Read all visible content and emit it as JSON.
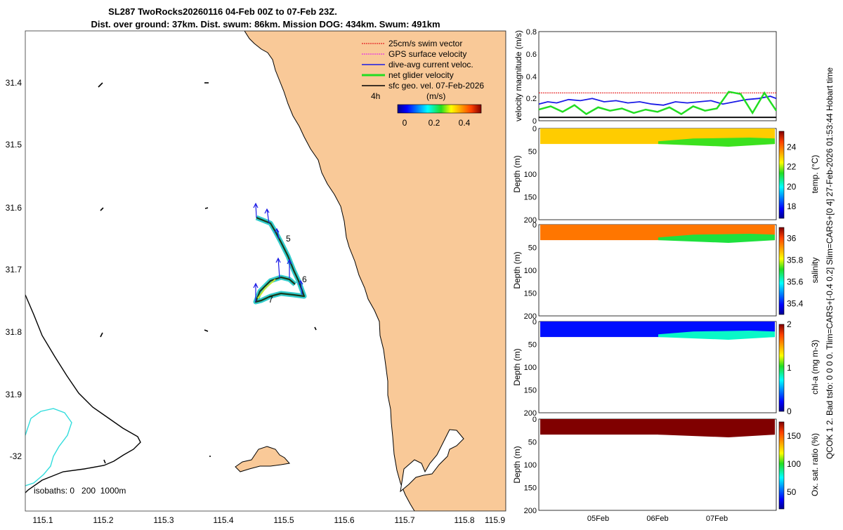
{
  "title": {
    "line1": "SL287 TwoRocks20260116 04-Feb 00Z to 07-Feb 23Z.",
    "line2": "Dist. over ground: 37km. Dist. swum: 86km. Mission DOG: 434km. Swum: 491km"
  },
  "side_note": "QCOK 1  2. Bad tsfo: 0  0  0  0. Tlim=CARS+[-0.4 0.2] Slim=CARS+[0 4] 27-Feb-2026 01:53:44 Hobart time",
  "map": {
    "x_ticks": [
      "115.1",
      "115.2",
      "115.3",
      "115.4",
      "115.5",
      "115.6",
      "115.7",
      "115.8",
      "115.9"
    ],
    "y_ticks": [
      "31.4",
      "31.5",
      "31.6",
      "31.7",
      "31.8",
      "31.9",
      "-32"
    ],
    "legend": [
      {
        "label": "25cm/s swim vector",
        "color": "#e52020"
      },
      {
        "label": "GPS surface velocity",
        "color": "#e533e5"
      },
      {
        "label": "dive-avg current veloc.",
        "color": "#1a1ae6"
      },
      {
        "label": "net glider velocity",
        "color": "#22dd22"
      },
      {
        "label": "sfc geo. vel. 07-Feb-2026",
        "color": "#000000"
      }
    ],
    "time_step": "4h",
    "colorbar_unit": "(m/s)",
    "colorbar_ticks": [
      "0",
      "0.2",
      "0.4"
    ],
    "day_labels": [
      "5",
      "6",
      "7"
    ],
    "isobaths_label": "isobaths: 0   200  1000m",
    "colors": {
      "land": "#f9c998",
      "isobath": "#33dddd",
      "track_outline": "#33cccc"
    }
  },
  "chart_data": [
    {
      "type": "line",
      "ylabel": "velocity magnitude (m/s)",
      "ylim": [
        0,
        0.8
      ],
      "y_ticks": [
        "0",
        "0.2",
        "0.4",
        "0.6",
        "0.8"
      ],
      "x_range_days": [
        4,
        8
      ],
      "series": [
        {
          "name": "swim speed",
          "color": "#e52020",
          "x": [
            4.0,
            8.0
          ],
          "values": [
            0.25,
            0.25
          ]
        },
        {
          "name": "dive-avg current",
          "color": "#1a1ae6",
          "x": [
            4.0,
            4.15,
            4.3,
            4.5,
            4.7,
            4.9,
            5.1,
            5.3,
            5.5,
            5.7,
            5.9,
            6.1,
            6.3,
            6.5,
            6.7,
            6.9,
            7.1,
            7.3,
            7.5,
            7.7,
            7.9,
            8.0
          ],
          "values": [
            0.15,
            0.17,
            0.16,
            0.19,
            0.18,
            0.2,
            0.17,
            0.18,
            0.16,
            0.17,
            0.15,
            0.14,
            0.17,
            0.16,
            0.17,
            0.18,
            0.15,
            0.17,
            0.19,
            0.2,
            0.22,
            0.2
          ]
        },
        {
          "name": "net glider velocity",
          "color": "#22dd22",
          "x": [
            4.0,
            4.2,
            4.4,
            4.6,
            4.8,
            5.0,
            5.2,
            5.4,
            5.6,
            5.8,
            6.0,
            6.2,
            6.4,
            6.6,
            6.8,
            7.0,
            7.2,
            7.4,
            7.6,
            7.8,
            8.0
          ],
          "values": [
            0.1,
            0.13,
            0.08,
            0.14,
            0.06,
            0.12,
            0.09,
            0.11,
            0.07,
            0.1,
            0.08,
            0.12,
            0.06,
            0.13,
            0.09,
            0.11,
            0.26,
            0.24,
            0.07,
            0.25,
            0.09
          ]
        },
        {
          "name": "sfc geo. vel.",
          "color": "#000000",
          "x": [
            4.0,
            8.0
          ],
          "values": [
            0.03,
            0.03
          ]
        }
      ]
    },
    {
      "type": "heatmap",
      "ylabel": "Depth (m)",
      "colorbar_label": "temp. (°C)",
      "ylim": [
        0,
        200
      ],
      "y_ticks": [
        "0",
        "50",
        "100",
        "150",
        "200"
      ],
      "colorbar_ticks": [
        "18",
        "20",
        "22",
        "24"
      ],
      "clim": [
        16.8,
        25.6
      ],
      "surface_value": 23.0,
      "bottom_value": 21.5
    },
    {
      "type": "heatmap",
      "ylabel": "Depth (m)",
      "colorbar_label": "salinity",
      "ylim": [
        0,
        200
      ],
      "y_ticks": [
        "0",
        "50",
        "100",
        "150",
        "200"
      ],
      "colorbar_ticks": [
        "35.4",
        "35.6",
        "35.8",
        "36"
      ],
      "clim": [
        35.3,
        36.1
      ],
      "surface_value": 35.95,
      "bottom_value": 35.7
    },
    {
      "type": "heatmap",
      "ylabel": "Depth (m)",
      "colorbar_label": "chl-a  (mg m-3)",
      "ylim": [
        0,
        200
      ],
      "y_ticks": [
        "0",
        "50",
        "100",
        "150",
        "200"
      ],
      "colorbar_ticks": [
        "0",
        "1",
        "2"
      ],
      "clim": [
        0,
        2
      ],
      "surface_value": 0.25,
      "bottom_value": 0.8
    },
    {
      "type": "heatmap",
      "ylabel": "Depth (m)",
      "colorbar_label": "Ox. sat. ratio (%)",
      "ylim": [
        0,
        200
      ],
      "y_ticks": [
        "0",
        "50",
        "100",
        "150",
        "200"
      ],
      "colorbar_ticks": [
        "50",
        "100",
        "150"
      ],
      "clim": [
        20,
        175
      ],
      "surface_value": 175,
      "bottom_value": 175,
      "x_tick_labels": [
        "05Feb",
        "06Feb",
        "07Feb"
      ],
      "x_ticks_days": [
        5,
        6,
        7
      ]
    }
  ]
}
